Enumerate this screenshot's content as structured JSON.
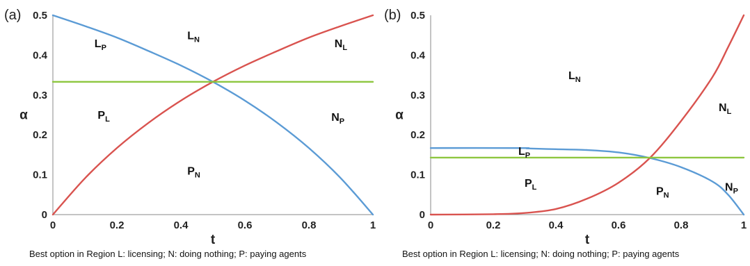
{
  "chart_data": [
    {
      "type": "line",
      "panel_label": "(a)",
      "xlabel": "t",
      "ylabel": "α",
      "xlim": [
        0,
        1
      ],
      "ylim": [
        0,
        0.5
      ],
      "xticks": [
        "0",
        "0.2",
        "0.4",
        "0.6",
        "0.8",
        "1"
      ],
      "yticks": [
        "0",
        "0.1",
        "0.2",
        "0.3",
        "0.4",
        "0.5"
      ],
      "grid": false,
      "series": [
        {
          "color": "#5b9bd5",
          "x": [
            0,
            0.1,
            0.2,
            0.3,
            0.4,
            0.5,
            0.6,
            0.7,
            0.8,
            0.9,
            1.0
          ],
          "y": [
            0.5,
            0.473,
            0.444,
            0.41,
            0.374,
            0.333,
            0.286,
            0.231,
            0.167,
            0.091,
            0.0
          ]
        },
        {
          "color": "#d9534f",
          "x": [
            0,
            0.1,
            0.2,
            0.3,
            0.4,
            0.5,
            0.6,
            0.7,
            0.8,
            0.9,
            1.0
          ],
          "y": [
            0.0,
            0.091,
            0.167,
            0.231,
            0.286,
            0.333,
            0.374,
            0.41,
            0.444,
            0.473,
            0.5
          ]
        },
        {
          "color": "#8dc63f",
          "x": [
            0,
            1
          ],
          "y": [
            0.333,
            0.333
          ]
        }
      ],
      "annotations": [
        {
          "main": "L",
          "sub": "P",
          "x": 0.13,
          "y": 0.42
        },
        {
          "main": "L",
          "sub": "N",
          "x": 0.42,
          "y": 0.44
        },
        {
          "main": "N",
          "sub": "L",
          "x": 0.88,
          "y": 0.42
        },
        {
          "main": "P",
          "sub": "L",
          "x": 0.14,
          "y": 0.24
        },
        {
          "main": "N",
          "sub": "P",
          "x": 0.87,
          "y": 0.235
        },
        {
          "main": "P",
          "sub": "N",
          "x": 0.42,
          "y": 0.1
        }
      ],
      "caption": "Best option in Region L: licensing; N: doing nothing; P: paying agents"
    },
    {
      "type": "line",
      "panel_label": "(b)",
      "xlabel": "t",
      "ylabel": "α",
      "xlim": [
        0,
        1
      ],
      "ylim": [
        0,
        0.5
      ],
      "xticks": [
        "0",
        "0.2",
        "0.4",
        "0.6",
        "0.8",
        "1"
      ],
      "yticks": [
        "0",
        "0.1",
        "0.2",
        "0.3",
        "0.4",
        "0.5"
      ],
      "grid": false,
      "series": [
        {
          "color": "#5b9bd5",
          "x": [
            0,
            0.29,
            0.31,
            0.4,
            0.5,
            0.6,
            0.7,
            0.8,
            0.9,
            0.95,
            1.0
          ],
          "y": [
            0.167,
            0.167,
            0.166,
            0.164,
            0.162,
            0.156,
            0.142,
            0.119,
            0.083,
            0.05,
            0.0
          ]
        },
        {
          "color": "#d9534f",
          "x": [
            0,
            0.2,
            0.3,
            0.4,
            0.5,
            0.6,
            0.7,
            0.8,
            0.9,
            0.95,
            1.0
          ],
          "y": [
            0.0,
            0.001,
            0.004,
            0.014,
            0.04,
            0.08,
            0.142,
            0.235,
            0.345,
            0.42,
            0.5
          ]
        },
        {
          "color": "#8dc63f",
          "x": [
            0,
            1
          ],
          "y": [
            0.143,
            0.143
          ]
        }
      ],
      "annotations": [
        {
          "main": "L",
          "sub": "N",
          "x": 0.44,
          "y": 0.34
        },
        {
          "main": "N",
          "sub": "L",
          "x": 0.92,
          "y": 0.26
        },
        {
          "main": "L",
          "sub": "P",
          "x": 0.28,
          "y": 0.15
        },
        {
          "main": "P",
          "sub": "L",
          "x": 0.3,
          "y": 0.07
        },
        {
          "main": "P",
          "sub": "N",
          "x": 0.72,
          "y": 0.05
        },
        {
          "main": "N",
          "sub": "P",
          "x": 0.94,
          "y": 0.06
        }
      ],
      "caption": "Best option in Region L: licensing; N: doing nothing; P: paying agents"
    }
  ]
}
